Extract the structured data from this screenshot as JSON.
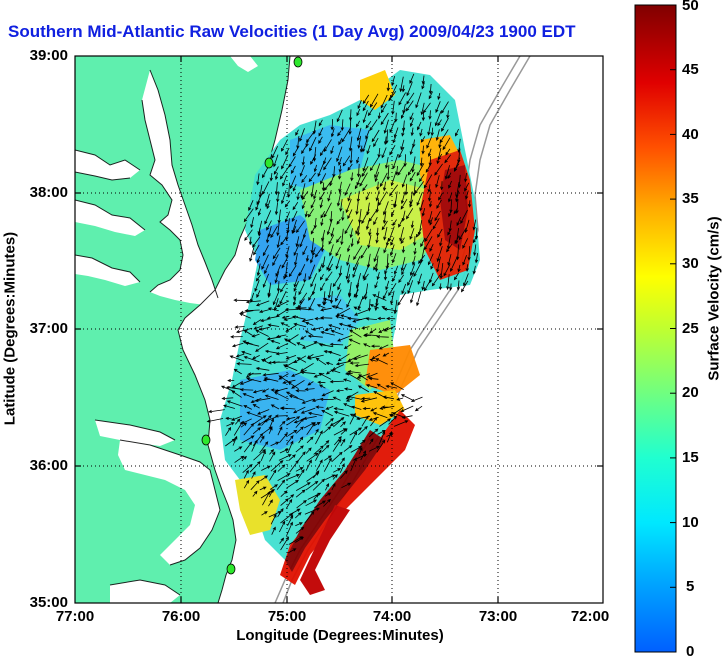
{
  "title": "Southern Mid-Atlantic Raw Velocities (1 Day Avg) 2009/04/23 1900 EDT",
  "map": {
    "xlabel": "Longitude (Degrees:Minutes)",
    "ylabel": "Latitude (Degrees:Minutes)",
    "lat_ticks": [
      "39:00",
      "38:00",
      "37:00",
      "36:00",
      "35:00"
    ],
    "lon_ticks": [
      "77:00",
      "76:00",
      "75:00",
      "74:00",
      "73:00",
      "72:00"
    ],
    "lat_range": [
      35,
      39
    ],
    "lon_range": [
      -77,
      -72
    ],
    "grid": "dotted",
    "land_color": "#5fefae",
    "water_color": "#ffffff",
    "station_color": "#2ee82e"
  },
  "colorbar": {
    "label": "Surface Velocity (cm/s)",
    "ticks": [
      "50",
      "45",
      "40",
      "35",
      "30",
      "25",
      "20",
      "15",
      "10",
      "5",
      "0"
    ],
    "range": [
      0,
      50
    ]
  },
  "chart_data": {
    "type": "heatmap",
    "title": "Southern Mid-Atlantic Raw Velocities (1 Day Avg) 2009/04/23 1900 EDT",
    "xlabel": "Longitude (Degrees:Minutes)",
    "ylabel": "Latitude (Degrees:Minutes)",
    "colorbar_label": "Surface Velocity (cm/s)",
    "colorbar_range": [
      0,
      50
    ],
    "xlim": [
      -77,
      -72
    ],
    "ylim": [
      35,
      39
    ]
  }
}
